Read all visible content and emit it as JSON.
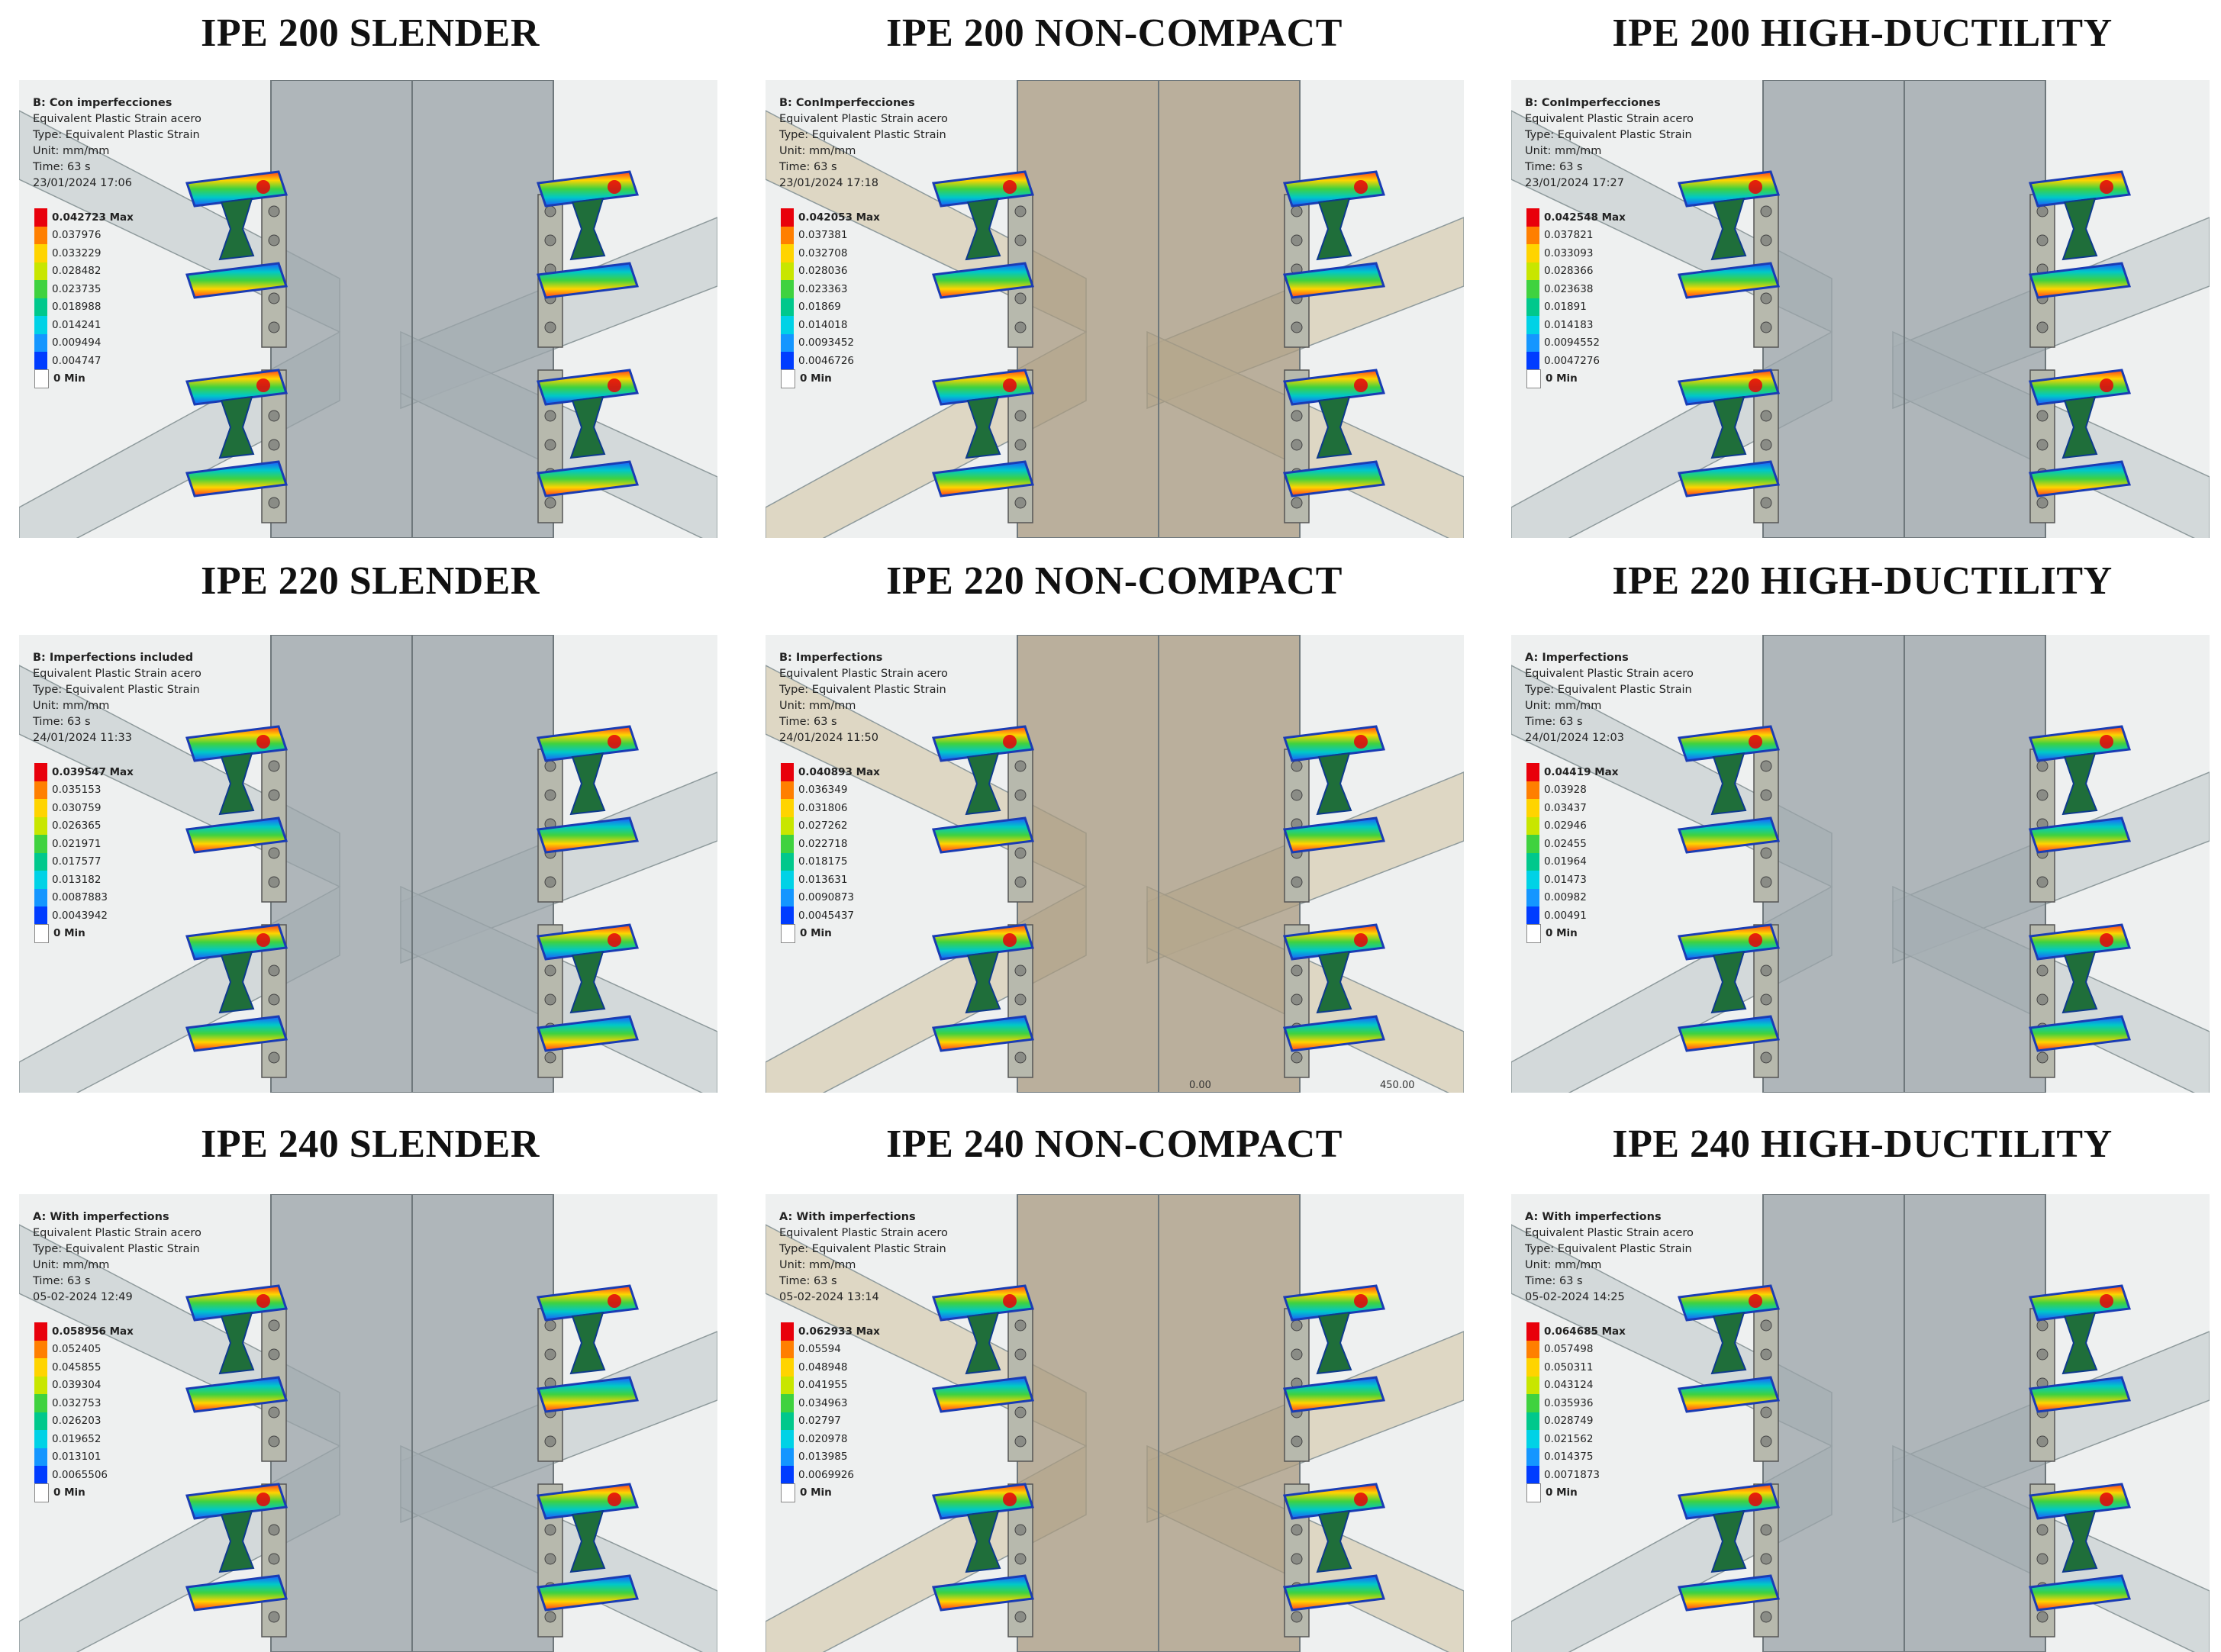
{
  "panels": [
    {
      "title": "IPE 200 SLENDER",
      "tone": "grey",
      "info": [
        "B: Con imperfecciones",
        "Equivalent Plastic Strain acero",
        "Type: Equivalent Plastic Strain",
        "Unit: mm/mm",
        "Time: 63 s",
        "23/01/2024 17:06"
      ],
      "legend": [
        "0.042723 Max",
        "0.037976",
        "0.033229",
        "0.028482",
        "0.023735",
        "0.018988",
        "0.014241",
        "0.009494",
        "0.004747",
        "0 Min"
      ]
    },
    {
      "title": "IPE 200 NON-COMPACT",
      "tone": "tan",
      "info": [
        "B: ConImperfecciones",
        "Equivalent Plastic Strain acero",
        "Type: Equivalent Plastic Strain",
        "Unit: mm/mm",
        "Time: 63 s",
        "23/01/2024 17:18"
      ],
      "legend": [
        "0.042053 Max",
        "0.037381",
        "0.032708",
        "0.028036",
        "0.023363",
        "0.01869",
        "0.014018",
        "0.0093452",
        "0.0046726",
        "0 Min"
      ]
    },
    {
      "title": "IPE 200 HIGH-DUCTILITY",
      "tone": "grey",
      "info": [
        "B: ConImperfecciones",
        "Equivalent Plastic Strain acero",
        "Type: Equivalent Plastic Strain",
        "Unit: mm/mm",
        "Time: 63 s",
        "23/01/2024 17:27"
      ],
      "legend": [
        "0.042548 Max",
        "0.037821",
        "0.033093",
        "0.028366",
        "0.023638",
        "0.01891",
        "0.014183",
        "0.0094552",
        "0.0047276",
        "0 Min"
      ]
    },
    {
      "title": "IPE 220 SLENDER",
      "tone": "grey",
      "info": [
        "B: Imperfections included",
        "Equivalent Plastic Strain acero",
        "Type: Equivalent Plastic Strain",
        "Unit: mm/mm",
        "Time: 63 s",
        "24/01/2024 11:33"
      ],
      "legend": [
        "0.039547 Max",
        "0.035153",
        "0.030759",
        "0.026365",
        "0.021971",
        "0.017577",
        "0.013182",
        "0.0087883",
        "0.0043942",
        "0 Min"
      ]
    },
    {
      "title": "IPE 220 NON-COMPACT",
      "tone": "tan",
      "info": [
        "B: Imperfections",
        "Equivalent Plastic Strain acero",
        "Type: Equivalent Plastic Strain",
        "Unit: mm/mm",
        "Time: 63 s",
        "24/01/2024 11:50"
      ],
      "legend": [
        "0.040893 Max",
        "0.036349",
        "0.031806",
        "0.027262",
        "0.022718",
        "0.018175",
        "0.013631",
        "0.0090873",
        "0.0045437",
        "0 Min"
      ],
      "footer": [
        "0.00",
        "450.00"
      ]
    },
    {
      "title": "IPE 220 HIGH-DUCTILITY",
      "tone": "grey",
      "info": [
        "A: Imperfections",
        "Equivalent Plastic Strain acero",
        "Type: Equivalent Plastic Strain",
        "Unit: mm/mm",
        "Time: 63 s",
        "24/01/2024 12:03"
      ],
      "legend": [
        "0.04419 Max",
        "0.03928",
        "0.03437",
        "0.02946",
        "0.02455",
        "0.01964",
        "0.01473",
        "0.00982",
        "0.00491",
        "0 Min"
      ]
    },
    {
      "title": "IPE 240 SLENDER",
      "tone": "grey",
      "info": [
        "A: With imperfections",
        "Equivalent Plastic Strain acero",
        "Type: Equivalent Plastic Strain",
        "Unit: mm/mm",
        "Time: 63 s",
        "05-02-2024 12:49"
      ],
      "legend": [
        "0.058956 Max",
        "0.052405",
        "0.045855",
        "0.039304",
        "0.032753",
        "0.026203",
        "0.019652",
        "0.013101",
        "0.0065506",
        "0 Min"
      ]
    },
    {
      "title": "IPE 240 NON-COMPACT",
      "tone": "tan",
      "info": [
        "A: With imperfections",
        "Equivalent Plastic Strain acero",
        "Type: Equivalent Plastic Strain",
        "Unit: mm/mm",
        "Time: 63 s",
        "05-02-2024 13:14"
      ],
      "legend": [
        "0.062933 Max",
        "0.05594",
        "0.048948",
        "0.041955",
        "0.034963",
        "0.02797",
        "0.020978",
        "0.013985",
        "0.0069926",
        "0 Min"
      ]
    },
    {
      "title": "IPE 240 HIGH-DUCTILITY",
      "tone": "grey",
      "info": [
        "A: With imperfections",
        "Equivalent Plastic Strain acero",
        "Type: Equivalent Plastic Strain",
        "Unit: mm/mm",
        "Time: 63 s",
        "05-02-2024 14:25"
      ],
      "legend": [
        "0.064685 Max",
        "0.057498",
        "0.050311",
        "0.043124",
        "0.035936",
        "0.028749",
        "0.021562",
        "0.014375",
        "0.0071873",
        "0 Min"
      ]
    }
  ],
  "legend_colors": [
    "#e8000b",
    "#ff7f00",
    "#ffd400",
    "#c8e600",
    "#3fd23f",
    "#00c88c",
    "#00d2e6",
    "#1496ff",
    "#003cff",
    "#ffffff"
  ],
  "colors": {
    "background": "#ffffff",
    "column_grey": "#9aa3a8",
    "column_tan": "#a89a80",
    "beam": "#b9c4c8",
    "plastic_high": "#e8000b",
    "plastic_mid": "#3fd23f",
    "plastic_low": "#003cff"
  }
}
